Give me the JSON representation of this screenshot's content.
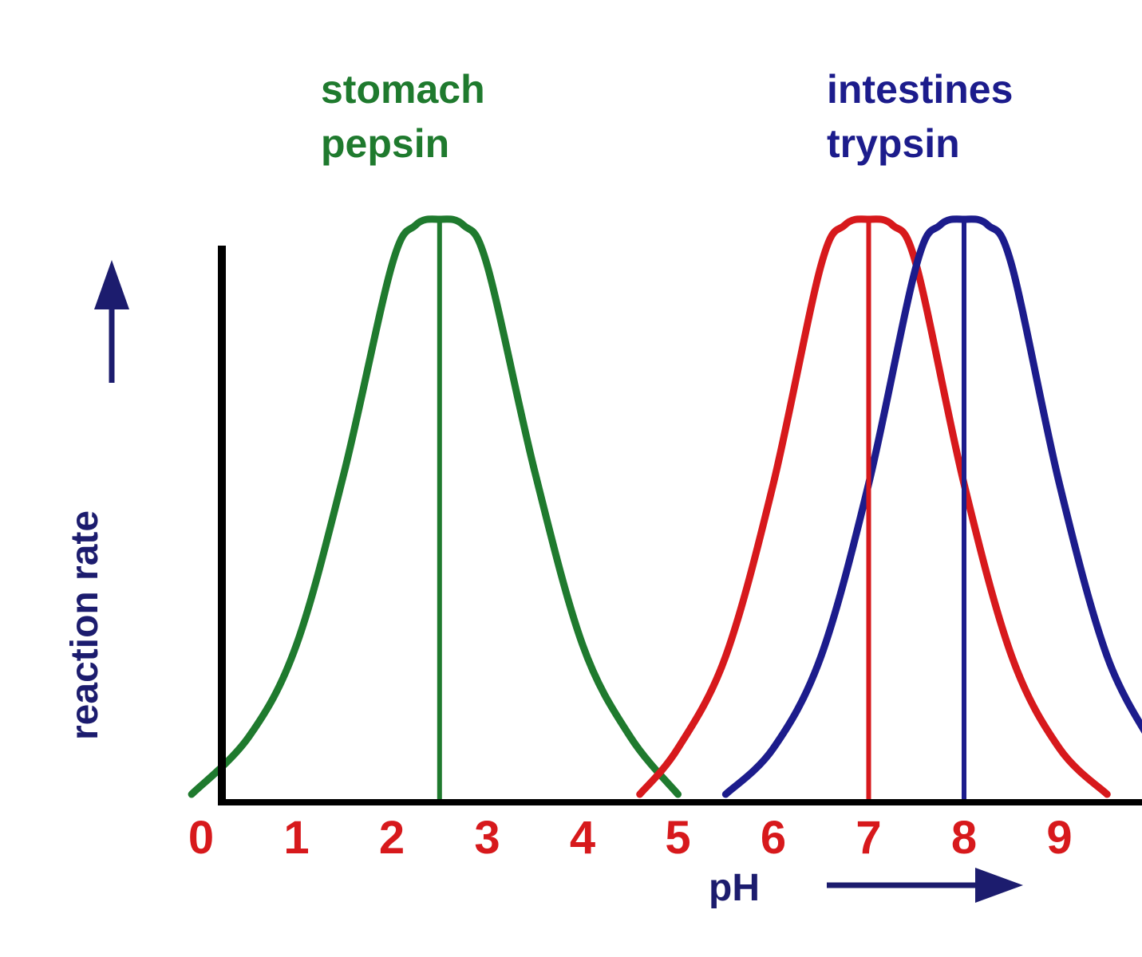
{
  "chart_data": {
    "type": "line",
    "title": "",
    "xlabel": "pH",
    "ylabel": "reaction rate",
    "xlim": [
      0,
      10
    ],
    "ylim": [
      0,
      1
    ],
    "x_ticks": [
      "0",
      "1",
      "2",
      "3",
      "4",
      "5",
      "6",
      "7",
      "8",
      "9"
    ],
    "grid": false,
    "series": [
      {
        "name": "stomach pepsin",
        "color": "#1f7a2e",
        "peak_ph": 2.5,
        "x": [
          -0.1,
          0.5,
          1.0,
          1.5,
          2.0,
          2.25,
          2.5,
          2.75,
          3.0,
          3.5,
          4.0,
          4.5,
          5.0
        ],
        "y": [
          0.0,
          0.1,
          0.26,
          0.56,
          0.92,
          0.99,
          1.0,
          0.99,
          0.92,
          0.56,
          0.26,
          0.1,
          0.0
        ]
      },
      {
        "name": "",
        "color": "#d7191c",
        "peak_ph": 7.0,
        "x": [
          4.6,
          5.0,
          5.5,
          6.0,
          6.5,
          6.75,
          7.0,
          7.25,
          7.5,
          8.0,
          8.5,
          9.0,
          9.5
        ],
        "y": [
          0.0,
          0.08,
          0.24,
          0.54,
          0.92,
          0.99,
          1.0,
          0.99,
          0.92,
          0.54,
          0.24,
          0.08,
          0.0
        ]
      },
      {
        "name": "intestines trypsin",
        "color": "#1c1c8c",
        "peak_ph": 8.0,
        "x": [
          5.5,
          6.0,
          6.5,
          7.0,
          7.5,
          7.75,
          8.0,
          8.25,
          8.5,
          9.0,
          9.5,
          10.0
        ],
        "y": [
          0.0,
          0.08,
          0.24,
          0.54,
          0.92,
          0.99,
          1.0,
          0.99,
          0.92,
          0.54,
          0.24,
          0.08
        ]
      }
    ],
    "annotations": [
      {
        "lines": [
          "stomach",
          "pepsin"
        ],
        "color": "#1f7a2e"
      },
      {
        "lines": [
          "intestines",
          "trypsin"
        ],
        "color": "#1c1c8c"
      }
    ],
    "colors": {
      "tick_labels": "#d7191c",
      "axis_labels": "#1c1c6e",
      "axes": "#000000",
      "arrows": "#1c1c6e"
    }
  }
}
